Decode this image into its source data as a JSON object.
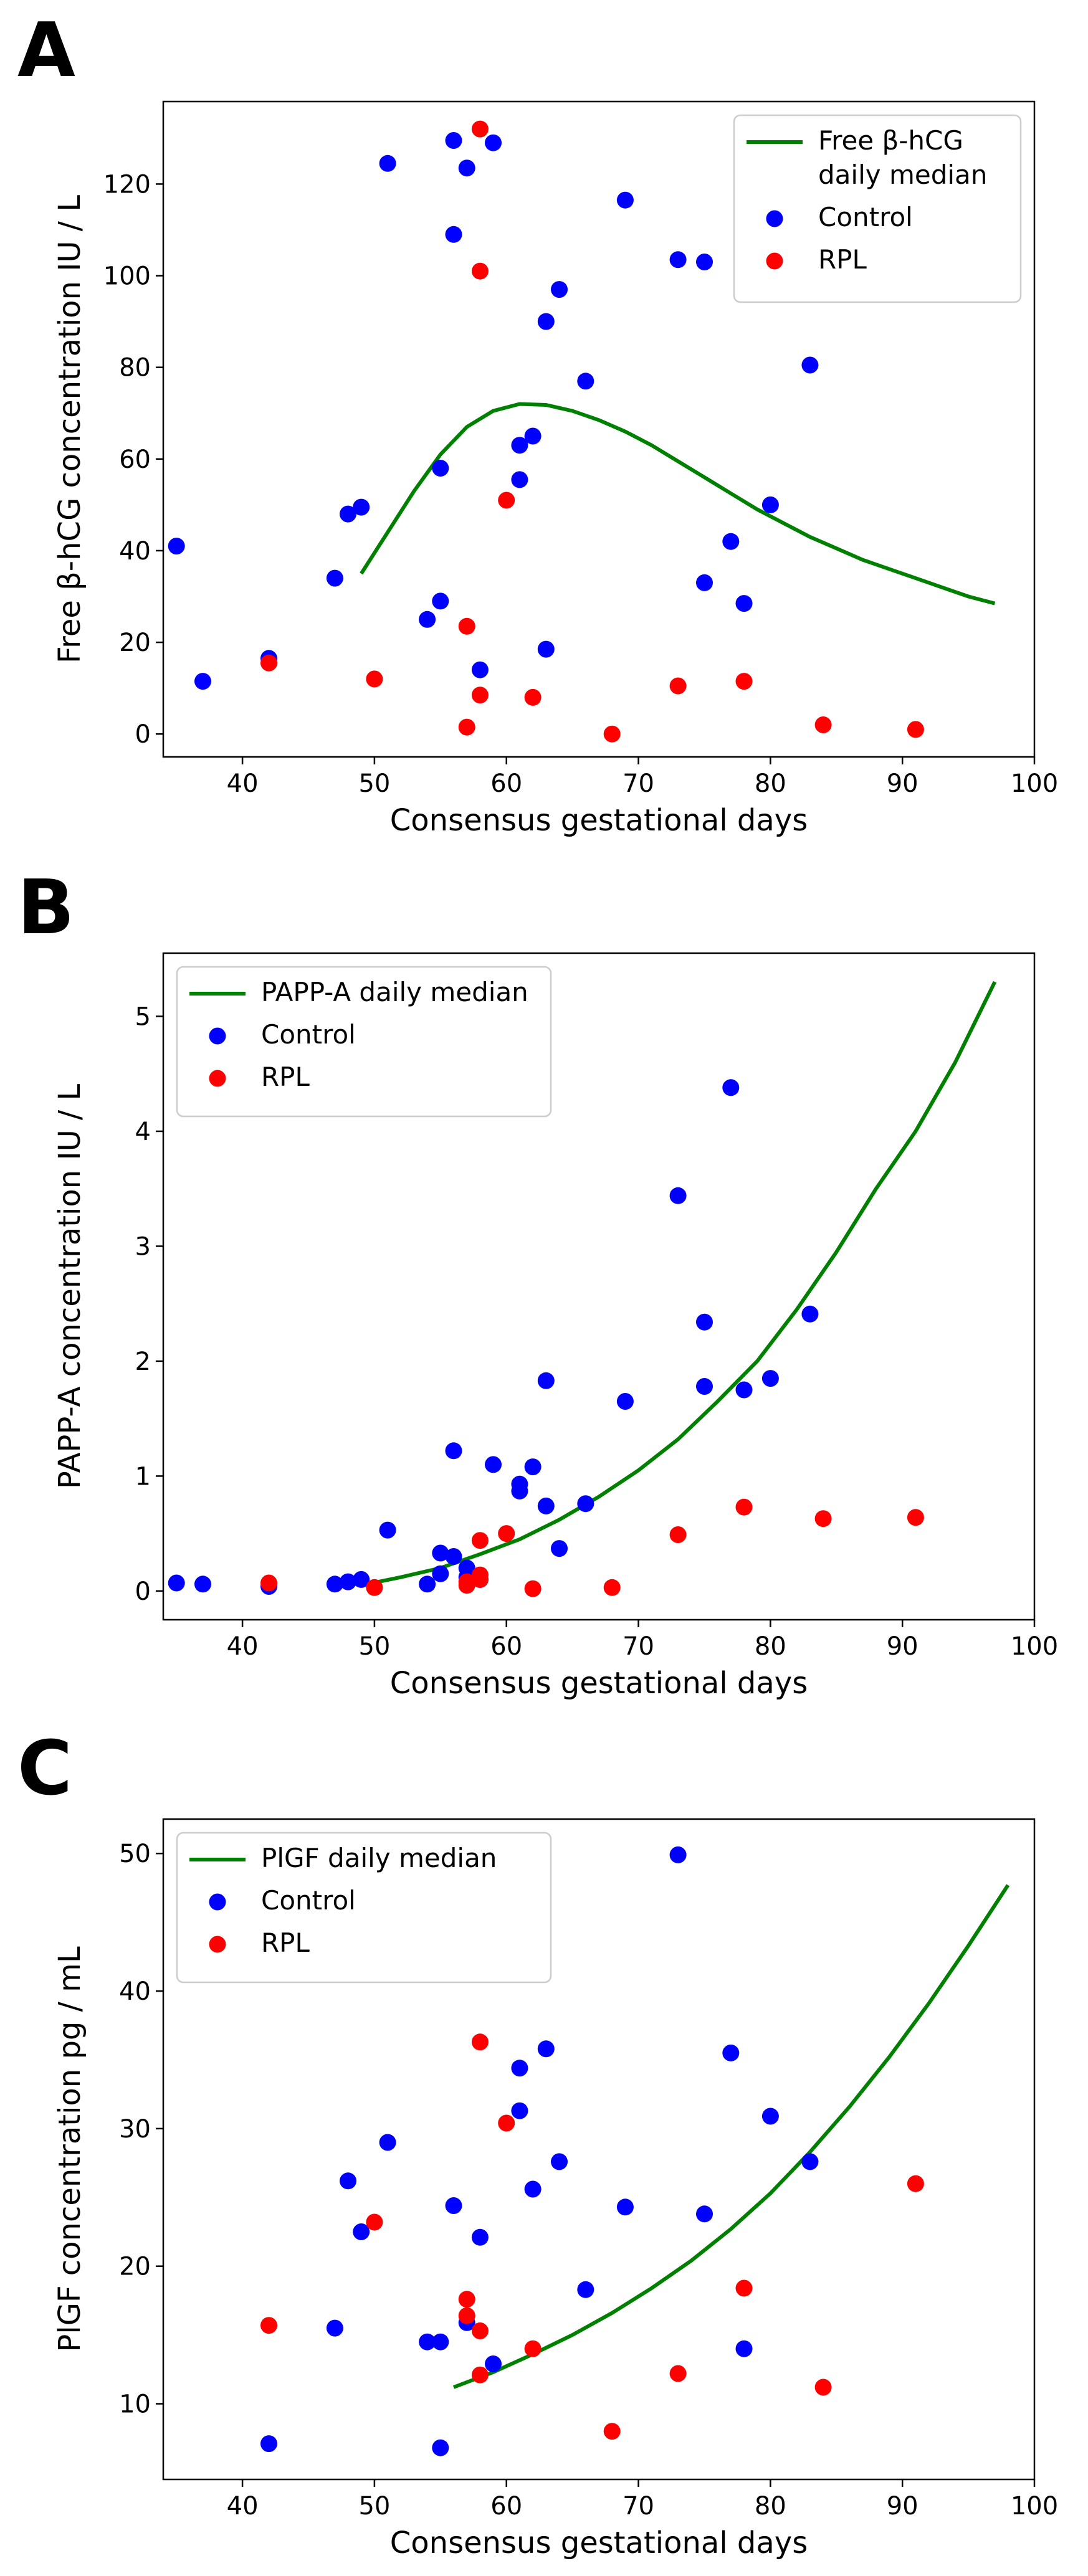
{
  "chart_data": [
    {
      "panel": "A",
      "type": "scatter",
      "xlabel": "Consensus gestational days",
      "ylabel": "Free β-hCG concentration IU / L",
      "xlim": [
        34,
        100
      ],
      "ylim": [
        -5,
        138
      ],
      "xticks": [
        40,
        50,
        60,
        70,
        80,
        90,
        100
      ],
      "yticks": [
        0,
        20,
        40,
        60,
        80,
        100,
        120
      ],
      "legend": {
        "position": "top-right",
        "entries": [
          {
            "label": "Free β-hCG",
            "label2": " daily median",
            "kind": "line",
            "color": "#008000"
          },
          {
            "label": "Control",
            "kind": "marker",
            "color": "#0000ff"
          },
          {
            "label": "RPL",
            "kind": "marker",
            "color": "#ff0000"
          }
        ]
      },
      "median_line": {
        "name": "Free β-hCG daily median",
        "color": "#008000",
        "x": [
          49,
          51,
          53,
          55,
          57,
          59,
          61,
          63,
          65,
          67,
          69,
          71,
          73,
          75,
          77,
          79,
          81,
          83,
          85,
          87,
          89,
          91,
          93,
          95,
          97
        ],
        "y": [
          35,
          44,
          53,
          61,
          67,
          70.5,
          72,
          71.8,
          70.5,
          68.5,
          66,
          63,
          59.5,
          56,
          52.5,
          49,
          46,
          43,
          40.5,
          38,
          36,
          34,
          32,
          30,
          28.5
        ]
      },
      "series": [
        {
          "name": "Control",
          "color": "#0000ff",
          "points": [
            [
              35,
              41
            ],
            [
              37,
              11.5
            ],
            [
              42,
              16.5
            ],
            [
              47,
              34
            ],
            [
              48,
              48
            ],
            [
              49,
              49.5
            ],
            [
              51,
              124.5
            ],
            [
              54,
              25
            ],
            [
              55,
              29
            ],
            [
              55,
              58
            ],
            [
              56,
              109
            ],
            [
              56,
              129.5
            ],
            [
              57,
              123.5
            ],
            [
              58,
              14
            ],
            [
              59,
              129
            ],
            [
              61,
              55.5
            ],
            [
              61,
              63
            ],
            [
              62,
              65
            ],
            [
              63,
              18.5
            ],
            [
              63,
              90
            ],
            [
              64,
              97
            ],
            [
              66,
              77
            ],
            [
              69,
              116.5
            ],
            [
              73,
              103.5
            ],
            [
              75,
              103
            ],
            [
              75,
              33
            ],
            [
              77,
              42
            ],
            [
              78,
              28.5
            ],
            [
              80,
              50
            ],
            [
              83,
              80.5
            ]
          ]
        },
        {
          "name": "RPL",
          "color": "#ff0000",
          "points": [
            [
              42,
              15.5
            ],
            [
              50,
              12
            ],
            [
              57,
              23.5
            ],
            [
              57,
              1.5
            ],
            [
              58,
              8.5
            ],
            [
              58,
              101
            ],
            [
              58,
              132
            ],
            [
              60,
              51
            ],
            [
              62,
              8
            ],
            [
              68,
              0
            ],
            [
              73,
              10.5
            ],
            [
              78,
              11.5
            ],
            [
              84,
              2
            ],
            [
              91,
              1
            ]
          ]
        }
      ]
    },
    {
      "panel": "B",
      "type": "scatter",
      "xlabel": "Consensus gestational days",
      "ylabel": "PAPP-A concentration IU / L",
      "xlim": [
        34,
        100
      ],
      "ylim": [
        -0.25,
        5.55
      ],
      "xticks": [
        40,
        50,
        60,
        70,
        80,
        90,
        100
      ],
      "yticks": [
        0,
        1,
        2,
        3,
        4,
        5
      ],
      "legend": {
        "position": "top-left",
        "entries": [
          {
            "label": "PAPP-A daily median",
            "kind": "line",
            "color": "#008000"
          },
          {
            "label": "Control",
            "kind": "marker",
            "color": "#0000ff"
          },
          {
            "label": "RPL",
            "kind": "marker",
            "color": "#ff0000"
          }
        ]
      },
      "median_line": {
        "name": "PAPP-A daily median",
        "color": "#008000",
        "x": [
          49,
          52,
          55,
          58,
          61,
          64,
          67,
          70,
          73,
          76,
          79,
          82,
          85,
          88,
          91,
          94,
          97
        ],
        "y": [
          0.05,
          0.12,
          0.2,
          0.32,
          0.45,
          0.62,
          0.82,
          1.05,
          1.32,
          1.65,
          2.0,
          2.45,
          2.95,
          3.5,
          4.0,
          4.6,
          5.3
        ]
      },
      "series": [
        {
          "name": "Control",
          "color": "#0000ff",
          "points": [
            [
              35,
              0.07
            ],
            [
              37,
              0.06
            ],
            [
              42,
              0.04
            ],
            [
              47,
              0.06
            ],
            [
              48,
              0.08
            ],
            [
              49,
              0.1
            ],
            [
              51,
              0.53
            ],
            [
              54,
              0.06
            ],
            [
              55,
              0.15
            ],
            [
              55,
              0.33
            ],
            [
              56,
              0.3
            ],
            [
              56,
              1.22
            ],
            [
              57,
              0.12
            ],
            [
              57,
              0.2
            ],
            [
              58,
              0.1
            ],
            [
              59,
              1.1
            ],
            [
              61,
              0.87
            ],
            [
              61,
              0.93
            ],
            [
              62,
              1.08
            ],
            [
              63,
              0.74
            ],
            [
              63,
              1.83
            ],
            [
              64,
              0.37
            ],
            [
              66,
              0.76
            ],
            [
              69,
              1.65
            ],
            [
              73,
              3.44
            ],
            [
              75,
              2.34
            ],
            [
              75,
              1.78
            ],
            [
              77,
              4.38
            ],
            [
              78,
              1.75
            ],
            [
              80,
              1.85
            ],
            [
              83,
              2.41
            ]
          ]
        },
        {
          "name": "RPL",
          "color": "#ff0000",
          "points": [
            [
              42,
              0.07
            ],
            [
              50,
              0.03
            ],
            [
              57,
              0.08
            ],
            [
              57,
              0.05
            ],
            [
              58,
              0.14
            ],
            [
              58,
              0.44
            ],
            [
              58,
              0.1
            ],
            [
              60,
              0.5
            ],
            [
              62,
              0.02
            ],
            [
              68,
              0.03
            ],
            [
              73,
              0.49
            ],
            [
              78,
              0.73
            ],
            [
              84,
              0.63
            ],
            [
              91,
              0.64
            ]
          ]
        }
      ]
    },
    {
      "panel": "C",
      "type": "scatter",
      "xlabel": "Consensus gestational days",
      "ylabel": "PlGF concentration pg / mL",
      "xlim": [
        34,
        100
      ],
      "ylim": [
        4.5,
        52.5
      ],
      "xticks": [
        40,
        50,
        60,
        70,
        80,
        90,
        100
      ],
      "yticks": [
        10,
        20,
        30,
        40,
        50
      ],
      "legend": {
        "position": "top-left",
        "entries": [
          {
            "label": "PlGF daily median",
            "kind": "line",
            "color": "#008000"
          },
          {
            "label": "Control",
            "kind": "marker",
            "color": "#0000ff"
          },
          {
            "label": "RPL",
            "kind": "marker",
            "color": "#ff0000"
          }
        ]
      },
      "median_line": {
        "name": "PlGF daily median",
        "color": "#008000",
        "x": [
          56,
          59,
          62,
          65,
          68,
          71,
          74,
          77,
          80,
          83,
          86,
          89,
          92,
          95,
          98
        ],
        "y": [
          11.2,
          12.3,
          13.6,
          15.0,
          16.6,
          18.4,
          20.4,
          22.7,
          25.3,
          28.3,
          31.6,
          35.2,
          39.1,
          43.3,
          47.7
        ]
      },
      "series": [
        {
          "name": "Control",
          "color": "#0000ff",
          "points": [
            [
              42,
              7.1
            ],
            [
              47,
              15.5
            ],
            [
              48,
              26.2
            ],
            [
              49,
              22.5
            ],
            [
              51,
              29
            ],
            [
              54,
              14.5
            ],
            [
              55,
              14.5
            ],
            [
              55,
              6.8
            ],
            [
              56,
              24.4
            ],
            [
              57,
              15.9
            ],
            [
              58,
              22.1
            ],
            [
              59,
              12.9
            ],
            [
              61,
              34.4
            ],
            [
              61,
              31.3
            ],
            [
              62,
              25.6
            ],
            [
              63,
              35.8
            ],
            [
              64,
              27.6
            ],
            [
              66,
              18.3
            ],
            [
              69,
              24.3
            ],
            [
              73,
              49.9
            ],
            [
              75,
              23.8
            ],
            [
              77,
              35.5
            ],
            [
              78,
              14
            ],
            [
              80,
              30.9
            ],
            [
              83,
              27.6
            ]
          ]
        },
        {
          "name": "RPL",
          "color": "#ff0000",
          "points": [
            [
              42,
              15.7
            ],
            [
              50,
              23.2
            ],
            [
              57,
              17.6
            ],
            [
              57,
              16.4
            ],
            [
              58,
              36.3
            ],
            [
              58,
              15.3
            ],
            [
              58,
              12.1
            ],
            [
              60,
              30.4
            ],
            [
              62,
              14
            ],
            [
              68,
              8
            ],
            [
              73,
              12.2
            ],
            [
              78,
              18.4
            ],
            [
              84,
              11.2
            ],
            [
              91,
              26
            ]
          ]
        }
      ]
    }
  ]
}
